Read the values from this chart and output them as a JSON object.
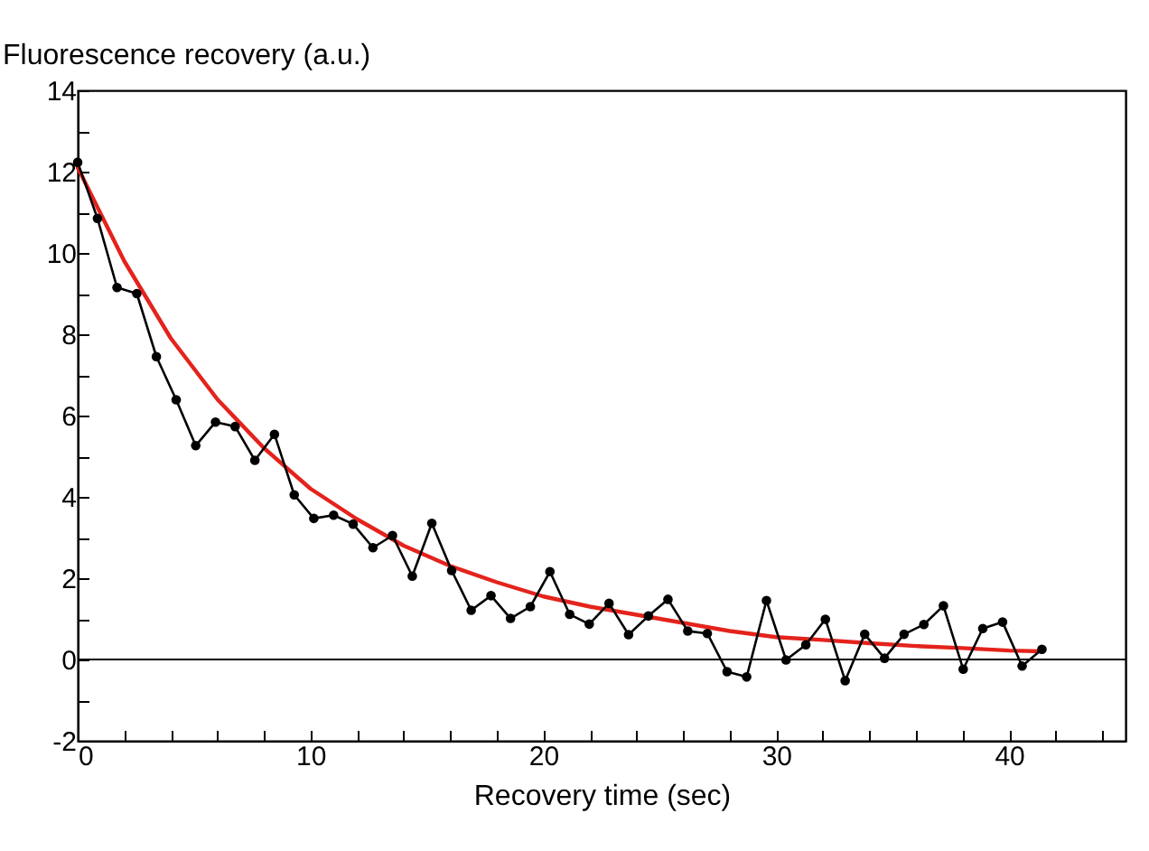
{
  "chart_data": {
    "type": "line",
    "xlabel": "Recovery time (sec)",
    "ylabel": "Fluorescence recovery (a.u.)",
    "xlim": [
      0,
      45
    ],
    "ylim": [
      -2,
      14
    ],
    "xticks": [
      0,
      {
        "value": 2,
        "label": null
      },
      {
        "value": 4,
        "label": null
      },
      {
        "value": 6,
        "label": null
      },
      {
        "value": 8,
        "label": null
      },
      10,
      {
        "value": 12,
        "label": null
      },
      {
        "value": 14,
        "label": null
      },
      {
        "value": 16,
        "label": null
      },
      {
        "value": 18,
        "label": null
      },
      20,
      {
        "value": 22,
        "label": null
      },
      {
        "value": 24,
        "label": null
      },
      {
        "value": 26,
        "label": null
      },
      {
        "value": 28,
        "label": null
      },
      30,
      {
        "value": 32,
        "label": null
      },
      {
        "value": 34,
        "label": null
      },
      {
        "value": 36,
        "label": null
      },
      {
        "value": 38,
        "label": null
      },
      40,
      {
        "value": 42,
        "label": null
      },
      {
        "value": 44,
        "label": null
      }
    ],
    "yticks": [
      -2,
      {
        "value": -1,
        "label": null
      },
      0,
      {
        "value": 1,
        "label": null
      },
      2,
      {
        "value": 3,
        "label": null
      },
      4,
      {
        "value": 5,
        "label": null
      },
      6,
      {
        "value": 7,
        "label": null
      },
      8,
      {
        "value": 9,
        "label": null
      },
      10,
      {
        "value": 11,
        "label": null
      },
      12,
      {
        "value": 13,
        "label": null
      },
      14
    ],
    "marker": "circle",
    "line_style": "solid",
    "ref_lines": [
      {
        "axis": "y",
        "value": 0,
        "color": "#000000"
      }
    ],
    "series": [
      {
        "color": "#000000",
        "x": [
          0,
          0.85,
          1.69,
          2.54,
          3.38,
          4.23,
          5.07,
          5.92,
          6.76,
          7.61,
          8.45,
          9.3,
          10.14,
          10.99,
          11.83,
          12.68,
          13.52,
          14.37,
          15.21,
          16.06,
          16.9,
          17.75,
          18.59,
          19.44,
          20.28,
          21.13,
          21.97,
          22.82,
          23.66,
          24.51,
          25.35,
          26.2,
          27.04,
          27.89,
          28.73,
          29.58,
          30.42,
          31.27,
          32.11,
          32.96,
          33.8,
          34.65,
          35.49,
          36.34,
          37.18,
          38.03,
          38.87,
          39.72,
          40.56,
          41.41
        ],
        "values": [
          12.23,
          10.85,
          9.15,
          9.0,
          7.45,
          6.39,
          5.26,
          5.84,
          5.73,
          4.9,
          5.54,
          4.05,
          3.47,
          3.55,
          3.33,
          2.75,
          3.05,
          2.05,
          3.35,
          2.19,
          1.21,
          1.57,
          1.01,
          1.3,
          2.16,
          1.11,
          0.87,
          1.38,
          0.61,
          1.07,
          1.48,
          0.7,
          0.64,
          -0.3,
          -0.43,
          1.45,
          -0.01,
          0.36,
          0.99,
          -0.52,
          0.62,
          0.03,
          0.62,
          0.86,
          1.32,
          -0.24,
          0.76,
          0.92,
          -0.16,
          0.25
        ]
      },
      {
        "color": "#e3231c",
        "marker": "none",
        "x": [
          0,
          2,
          4,
          6,
          8,
          10,
          12,
          14,
          16,
          18,
          20,
          22,
          24,
          26,
          28,
          30,
          32,
          34,
          36,
          38,
          40,
          41.4
        ],
        "values": [
          12.1,
          9.8,
          7.9,
          6.4,
          5.2,
          4.2,
          3.45,
          2.8,
          2.3,
          1.9,
          1.55,
          1.3,
          1.1,
          0.9,
          0.7,
          0.55,
          0.48,
          0.4,
          0.33,
          0.28,
          0.22,
          0.2
        ]
      }
    ]
  }
}
